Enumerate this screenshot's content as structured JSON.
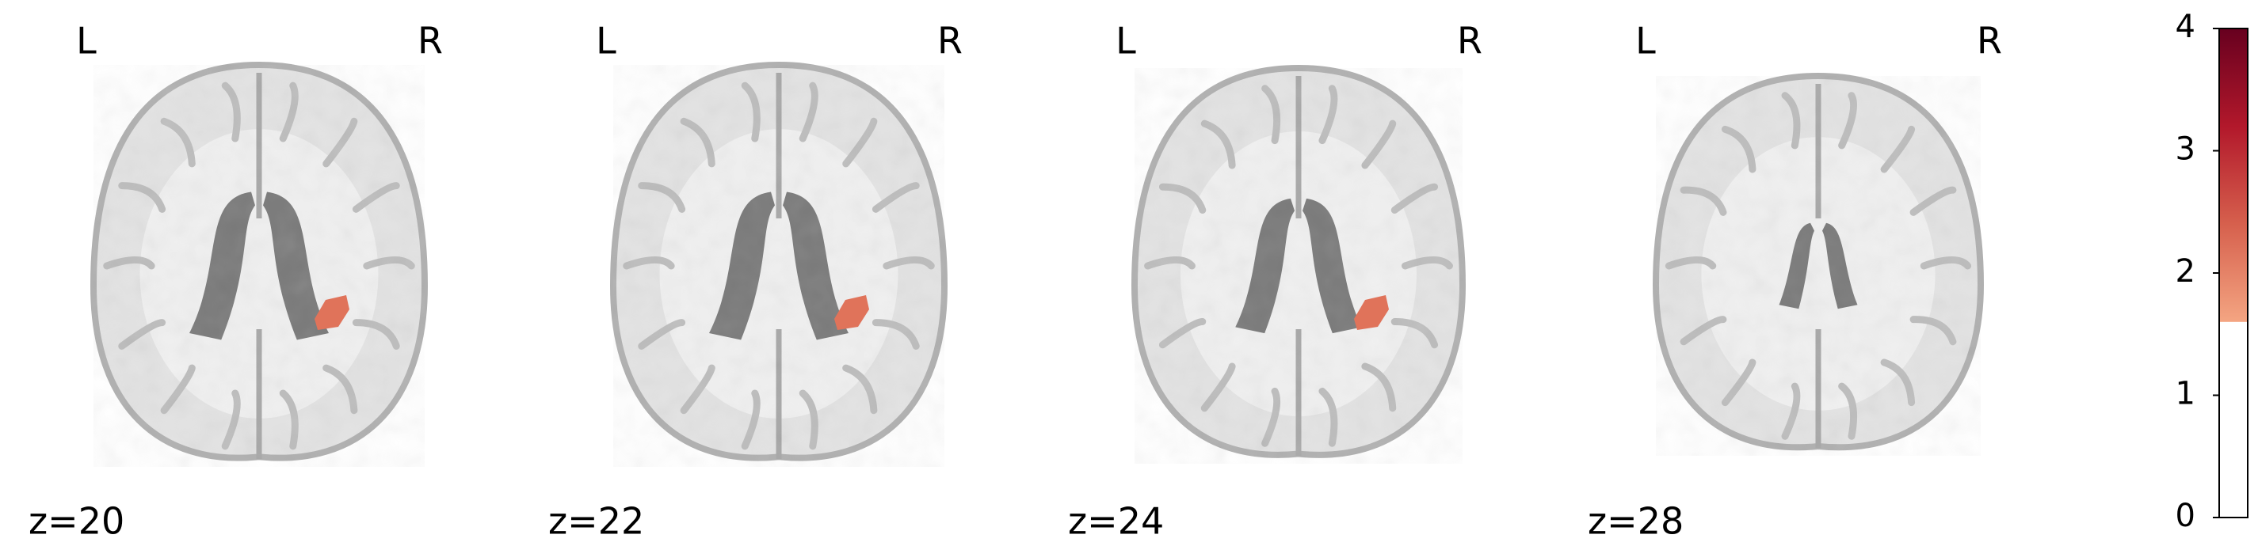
{
  "panels": [
    {
      "left": "L",
      "right": "R",
      "label": "z=20"
    },
    {
      "left": "L",
      "right": "R",
      "label": "z=22"
    },
    {
      "left": "L",
      "right": "R",
      "label": "z=24"
    },
    {
      "left": "L",
      "right": "R",
      "label": "z=28"
    }
  ],
  "colorbar": {
    "lim": [
      0,
      4
    ],
    "ticks": [
      0,
      1,
      2,
      3,
      4
    ],
    "threshold": 1.6,
    "colors": [
      "#f4a582",
      "#d6604d",
      "#b2182b",
      "#67001f"
    ]
  }
}
